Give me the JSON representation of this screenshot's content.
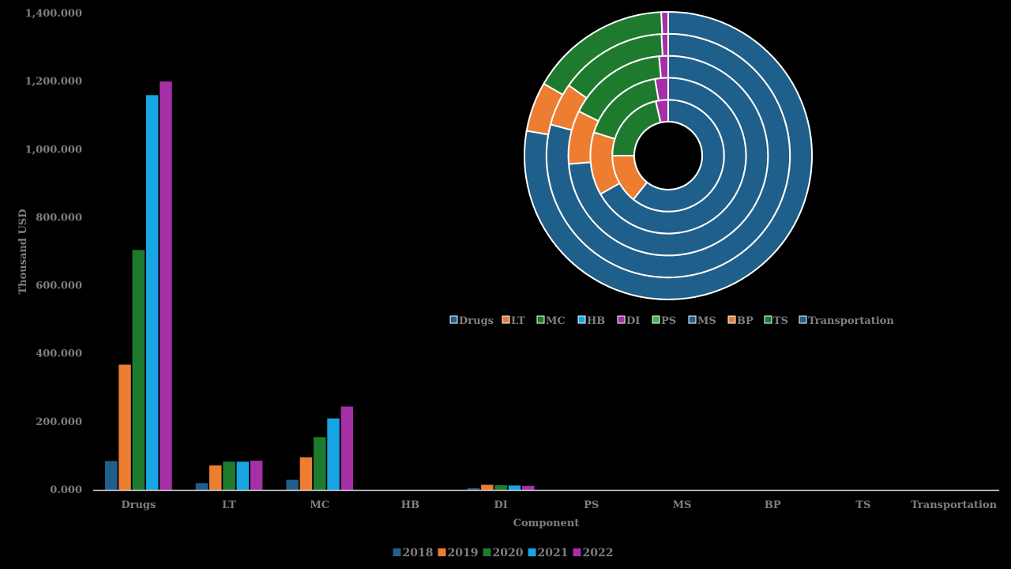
{
  "chart_data": [
    {
      "type": "bar",
      "title": "",
      "xlabel": "Component",
      "ylabel": "Thousand USD",
      "ylim": [
        0,
        1400000
      ],
      "ytick_labels": [
        "0.000",
        "200.000",
        "400.000",
        "600.000",
        "800.000",
        "1,000.000",
        "1,200.000",
        "1,400.000"
      ],
      "ytick_values": [
        0,
        200000,
        400000,
        600000,
        800000,
        1000000,
        1200000,
        1400000
      ],
      "categories": [
        "Drugs",
        "LT",
        "MC",
        "HB",
        "DI",
        "PS",
        "MS",
        "BP",
        "TS",
        "Transportation"
      ],
      "series": [
        {
          "name": "2018",
          "color": "#1f5f8b",
          "values": [
            85000,
            20000,
            30000,
            0,
            5000,
            0,
            0,
            0,
            0,
            0
          ]
        },
        {
          "name": "2019",
          "color": "#ed7d31",
          "values": [
            368000,
            72000,
            96000,
            0,
            15000,
            0,
            0,
            0,
            0,
            0
          ]
        },
        {
          "name": "2020",
          "color": "#1e7b2e",
          "values": [
            705000,
            83000,
            155000,
            0,
            14000,
            0,
            0,
            0,
            0,
            0
          ]
        },
        {
          "name": "2021",
          "color": "#17a5e3",
          "values": [
            1160000,
            83000,
            210000,
            0,
            13000,
            0,
            0,
            0,
            0,
            0
          ]
        },
        {
          "name": "2022",
          "color": "#a52fa5",
          "values": [
            1200000,
            86000,
            245000,
            0,
            12000,
            0,
            0,
            0,
            0,
            0
          ]
        }
      ],
      "grid": false,
      "legend_position": "bottom"
    },
    {
      "type": "pie",
      "subtype": "multi-ring doughnut",
      "legend_position": "bottom",
      "categories": [
        "Drugs",
        "LT",
        "MC",
        "HB",
        "DI",
        "PS",
        "MS",
        "BP",
        "TS",
        "Transportation"
      ],
      "category_colors": [
        "#1f5f8b",
        "#ed7d31",
        "#1e7b2e",
        "#17a5e3",
        "#a52fa5",
        "#4caf50",
        "#1f5f8b",
        "#ed7d31",
        "#1e7b2e",
        "#1f5f8b"
      ],
      "rings": [
        {
          "name": "2018",
          "values": [
            85000,
            20000,
            30000,
            0,
            5000,
            0,
            0,
            0,
            0,
            0
          ]
        },
        {
          "name": "2019",
          "values": [
            368000,
            72000,
            96000,
            0,
            15000,
            0,
            0,
            0,
            0,
            0
          ]
        },
        {
          "name": "2020",
          "values": [
            705000,
            83000,
            155000,
            0,
            14000,
            0,
            0,
            0,
            0,
            0
          ]
        },
        {
          "name": "2021",
          "values": [
            1160000,
            83000,
            210000,
            0,
            13000,
            0,
            0,
            0,
            0,
            0
          ]
        },
        {
          "name": "2022",
          "values": [
            1200000,
            86000,
            245000,
            0,
            12000,
            0,
            0,
            0,
            0,
            0
          ]
        }
      ]
    }
  ]
}
